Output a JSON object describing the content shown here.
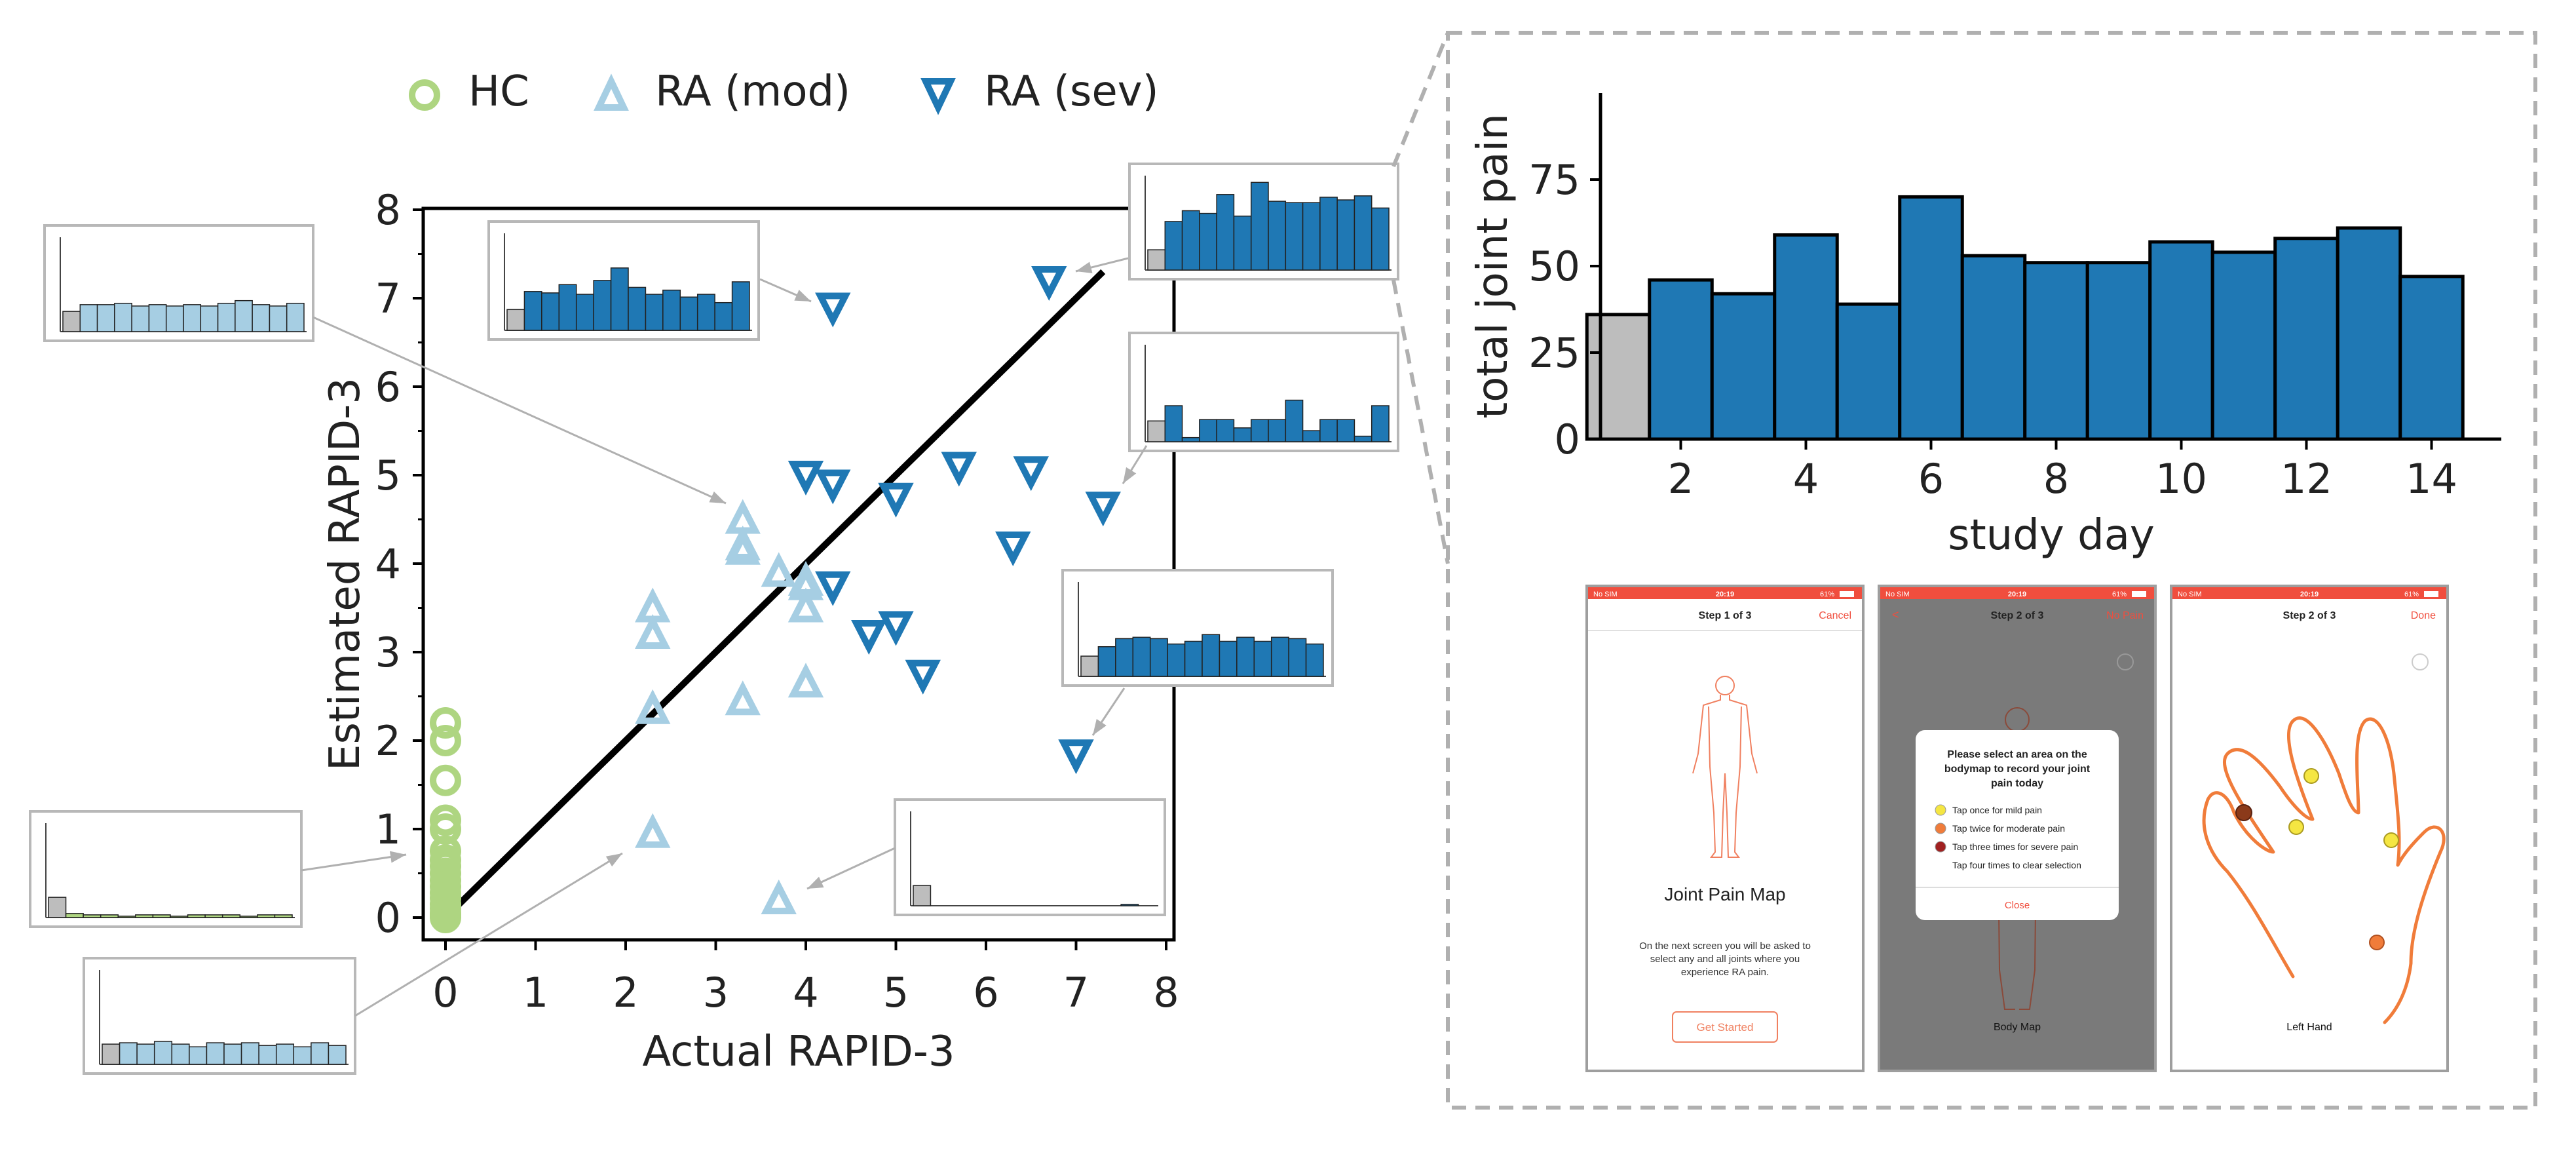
{
  "legend": [
    {
      "label": "HC",
      "color": "#aed581",
      "marker": "circle"
    },
    {
      "label": "RA (mod)",
      "color": "#a6cee3",
      "marker": "triangle-up"
    },
    {
      "label": "RA (sev)",
      "color": "#1f78b4",
      "marker": "triangle-down"
    }
  ],
  "chart_data": [
    {
      "type": "scatter",
      "title": "",
      "xlabel": "Actual RAPID-3",
      "ylabel": "Estimated RAPID-3",
      "xlim": [
        -0.25,
        8
      ],
      "ylim": [
        -0.25,
        8
      ],
      "xticks": [
        "0",
        "1",
        "2",
        "3",
        "4",
        "5",
        "6",
        "7",
        "8"
      ],
      "yticks": [
        "0",
        "1",
        "2",
        "3",
        "4",
        "5",
        "6",
        "7",
        "8"
      ],
      "identity_line": {
        "from": [
          0,
          0
        ],
        "to": [
          7.3,
          7.3
        ]
      },
      "series": [
        {
          "name": "HC",
          "marker": "circle",
          "color": "#aed581",
          "x": [
            0,
            0,
            0,
            0,
            0,
            0,
            0,
            0,
            0,
            0,
            0,
            0,
            0,
            0,
            0,
            0,
            0,
            0
          ],
          "y": [
            2.2,
            2.0,
            1.55,
            1.1,
            1.0,
            0.75,
            0.65,
            0.58,
            0.5,
            0.42,
            0.35,
            0.28,
            0.22,
            0.15,
            0.1,
            0.05,
            0.02,
            0.0
          ]
        },
        {
          "name": "RA (mod)",
          "marker": "triangle-up",
          "color": "#a6cee3",
          "x": [
            2.3,
            2.3,
            2.3,
            2.3,
            3.3,
            3.3,
            3.3,
            3.3,
            3.7,
            3.7,
            4.0,
            4.0,
            4.0,
            4.0
          ],
          "y": [
            3.5,
            3.2,
            2.35,
            0.95,
            4.5,
            4.2,
            4.15,
            2.45,
            3.9,
            0.2,
            3.75,
            3.5,
            2.65,
            3.8
          ]
        },
        {
          "name": "RA (sev)",
          "marker": "triangle-down",
          "color": "#1f78b4",
          "x": [
            4.3,
            4.0,
            4.3,
            4.3,
            4.7,
            5.0,
            5.0,
            5.3,
            5.7,
            6.3,
            6.5,
            6.7,
            7.3,
            7.0
          ],
          "y": [
            6.9,
            5.0,
            4.9,
            3.75,
            3.2,
            4.75,
            3.3,
            2.75,
            5.1,
            4.2,
            5.05,
            7.2,
            4.65,
            1.85
          ]
        }
      ]
    },
    {
      "type": "bar",
      "title": "",
      "xlabel": "study day",
      "ylabel": "total joint pain",
      "ylim": [
        0,
        80
      ],
      "yticks": [
        "0",
        "25",
        "50",
        "75"
      ],
      "xticks": [
        "2",
        "4",
        "6",
        "8",
        "10",
        "12",
        "14"
      ],
      "categories": [
        1,
        2,
        3,
        4,
        5,
        6,
        7,
        8,
        9,
        10,
        11,
        12,
        13,
        14
      ],
      "values": [
        36,
        46,
        42,
        59,
        39,
        70,
        53,
        51,
        51,
        57,
        54,
        58,
        61,
        47
      ],
      "baseline_color": "#bdbdbd",
      "bar_color": "#1f78b4"
    }
  ],
  "insets": [
    {
      "name": "inset-hc-left",
      "color": "#a6cee3",
      "values": [
        2.0,
        2.0,
        2.1,
        1.9,
        2.0,
        1.9,
        2.0,
        1.9,
        2.1,
        2.3,
        2.0,
        1.9,
        2.1
      ]
    },
    {
      "name": "inset-mod-top",
      "color": "#1f78b4",
      "values": [
        2.8,
        2.7,
        3.3,
        2.6,
        3.6,
        4.5,
        3.1,
        2.6,
        2.9,
        2.4,
        2.6,
        2.0,
        3.5
      ]
    },
    {
      "name": "inset-sev-top",
      "color": "#1f78b4",
      "values": [
        3.6,
        4.4,
        4.2,
        5.6,
        4.0,
        6.5,
        5.1,
        5.0,
        5.0,
        5.4,
        5.2,
        5.5,
        4.6
      ]
    },
    {
      "name": "inset-sev-mid",
      "color": "#1f78b4",
      "values": [
        2.6,
        0.3,
        1.6,
        1.6,
        1.0,
        1.6,
        1.6,
        3.0,
        0.8,
        1.6,
        1.6,
        0.4,
        2.6
      ]
    },
    {
      "name": "inset-sev-low",
      "color": "#1f78b4",
      "values": [
        2.2,
        2.8,
        2.9,
        2.8,
        2.4,
        2.6,
        3.1,
        2.6,
        2.9,
        2.6,
        2.9,
        2.8,
        2.4
      ]
    },
    {
      "name": "inset-hc-mid",
      "color": "#aed581",
      "values": [
        0.3,
        0.2,
        0.2,
        0.1,
        0.2,
        0.2,
        0.1,
        0.2,
        0.2,
        0.2,
        0.1,
        0.2,
        0.2
      ]
    },
    {
      "name": "inset-hc-bottom",
      "color": "#a6cee3",
      "values": [
        1.6,
        1.5,
        1.7,
        1.5,
        1.3,
        1.6,
        1.5,
        1.6,
        1.4,
        1.5,
        1.3,
        1.6,
        1.4
      ]
    },
    {
      "name": "inset-mod-zero",
      "color": "#1f78b4",
      "values": [
        0,
        0,
        0,
        0,
        0,
        0,
        0,
        0,
        0,
        0,
        0,
        0.1,
        0
      ]
    }
  ],
  "phones": [
    {
      "status_left": "No SIM",
      "status_time": "20:19",
      "status_right": "61%",
      "nav_left": "",
      "nav_title": "Step 1 of 3",
      "nav_right": "Cancel",
      "heading": "Joint Pain Map",
      "body": [
        "On the next screen you will be asked to",
        "select any and all joints where you",
        "experience RA pain."
      ],
      "button": "Get Started"
    },
    {
      "status_left": "No SIM",
      "status_time": "20:19",
      "status_right": "61%",
      "nav_left": "<",
      "nav_title": "Step 2 of 3",
      "nav_right": "No Pain",
      "dialog_title": [
        "Please select an area on the",
        "bodymap to record your joint",
        "pain today"
      ],
      "options": [
        {
          "text": "Tap once for mild pain",
          "color": "#f5e642"
        },
        {
          "text": "Tap twice for moderate pain",
          "color": "#f07c3a"
        },
        {
          "text": "Tap three times for severe pain",
          "color": "#a02020"
        },
        {
          "text": "Tap four times to clear selection",
          "color": ""
        }
      ],
      "dialog_button": "Close",
      "caption": "Body Map"
    },
    {
      "status_left": "No SIM",
      "status_time": "20:19",
      "status_right": "61%",
      "nav_left": "",
      "nav_title": "Step 2 of 3",
      "nav_right": "Done",
      "caption": "Left Hand"
    }
  ]
}
